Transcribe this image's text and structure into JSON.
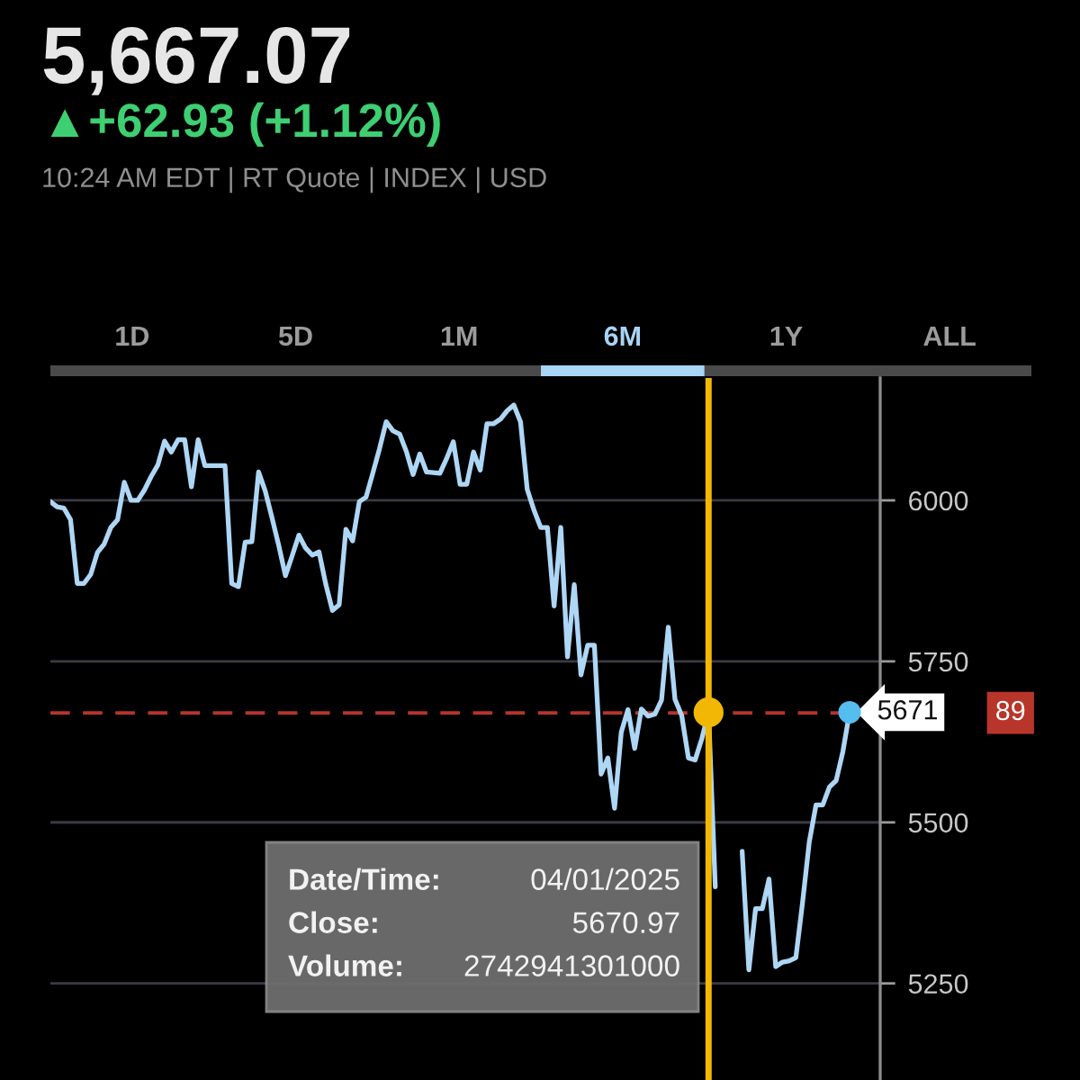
{
  "chart_data": {
    "type": "line",
    "title": "5,667.07",
    "subtitle": "▲+62.93 (+1.12%)",
    "annotations": [
      "10:24 AM EDT | RT Quote | INDEX | USD",
      "1D",
      "5D",
      "1M",
      "6M",
      "1Y",
      "ALL",
      "Date/Time:",
      "04/01/2025",
      "Close:",
      "5670.97",
      "Volume:",
      "2742941301000",
      "89"
    ],
    "categories": [
      null,
      null,
      null,
      null,
      null,
      null,
      null,
      null,
      null,
      null,
      null,
      null,
      null,
      null,
      null,
      null,
      null,
      null,
      null,
      null,
      null,
      null,
      null,
      null,
      null,
      null,
      null,
      null,
      null,
      null,
      null,
      null,
      null,
      null,
      null,
      null,
      null,
      null,
      null,
      null,
      null,
      null,
      null,
      null,
      null,
      null,
      null,
      null,
      null,
      null,
      null,
      null,
      null,
      null,
      null,
      null,
      null,
      null,
      null,
      null,
      null,
      null,
      null,
      null,
      null,
      null,
      null,
      null,
      null,
      null,
      null,
      null,
      null,
      null,
      null,
      null,
      null,
      null,
      null,
      null,
      null,
      null,
      null,
      null,
      null,
      null,
      null,
      null,
      null,
      null,
      null,
      null,
      null,
      null,
      null,
      null,
      null,
      null,
      null,
      null,
      null,
      null,
      null,
      null,
      null,
      null,
      null,
      null,
      null,
      null,
      null,
      null,
      null,
      null,
      null,
      null,
      null,
      null,
      null,
      null
    ],
    "series": [
      {
        "color": "#aed6f5",
        "values": [
          5998,
          5990,
          5988,
          5970,
          5871,
          5871,
          5885,
          5919,
          5932,
          5958,
          5970,
          6028,
          6000,
          6000,
          6016,
          6037,
          6055,
          6092,
          6075,
          6094,
          6094,
          6021,
          6094,
          6054,
          6054,
          6054,
          6054,
          5871,
          5866,
          5935,
          5936,
          6044,
          6014,
          5973,
          5930,
          5883,
          5914,
          5946,
          5926,
          5915,
          5920,
          5870,
          5829,
          5838,
          5955,
          5937,
          5998,
          6005,
          6042,
          6080,
          6122,
          6108,
          6103,
          6076,
          6040,
          6072,
          6044,
          6043,
          6042,
          6065,
          6091,
          6025,
          6025,
          6075,
          6047,
          6119,
          6119,
          6126,
          6139,
          6148,
          6122,
          6017,
          5985,
          5958,
          5958,
          5836,
          5958,
          5757,
          5869,
          5729,
          5775,
          5775,
          5575,
          5600,
          5522,
          5640,
          5675,
          5615,
          5676,
          5665,
          5668,
          5690,
          5803,
          5691,
          5666,
          5600,
          5597,
          5630,
          5670.97,
          5400,
          null,
          null,
          null,
          null,
          null,
          null,
          null,
          null,
          null,
          null,
          null,
          null,
          null,
          null,
          null,
          null,
          null,
          null,
          null,
          null
        ]
      },
      {
        "color": "#aed6f5",
        "values": [
          null,
          null,
          null,
          null,
          null,
          null,
          null,
          null,
          null,
          null,
          null,
          null,
          null,
          null,
          null,
          null,
          null,
          null,
          null,
          null,
          null,
          null,
          null,
          null,
          null,
          null,
          null,
          null,
          null,
          null,
          null,
          null,
          null,
          null,
          null,
          null,
          null,
          null,
          null,
          null,
          null,
          null,
          null,
          null,
          null,
          null,
          null,
          null,
          null,
          null,
          null,
          null,
          null,
          null,
          null,
          null,
          null,
          null,
          null,
          null,
          null,
          null,
          null,
          null,
          null,
          null,
          null,
          null,
          null,
          null,
          null,
          null,
          null,
          null,
          null,
          null,
          null,
          null,
          null,
          null,
          null,
          null,
          null,
          null,
          null,
          null,
          null,
          null,
          null,
          null,
          null,
          null,
          null,
          null,
          null,
          null,
          null,
          null,
          null,
          null,
          null,
          null,
          null,
          5455,
          5271,
          5366,
          5366,
          5412,
          5276,
          5283,
          5285,
          5290,
          5376,
          5470,
          5527,
          5527,
          5555,
          5565,
          5610,
          5671
        ],
        "value_labels": [
          null,
          null,
          null,
          null,
          null,
          null,
          null,
          null,
          null,
          null,
          null,
          null,
          null,
          null,
          null,
          null,
          null,
          null,
          null,
          null,
          null,
          null,
          null,
          null,
          null,
          null,
          null,
          null,
          null,
          null,
          null,
          null,
          null,
          null,
          null,
          null,
          null,
          null,
          null,
          null,
          null,
          null,
          null,
          null,
          null,
          null,
          null,
          null,
          null,
          null,
          null,
          null,
          null,
          null,
          null,
          null,
          null,
          null,
          null,
          null,
          null,
          null,
          null,
          null,
          null,
          null,
          null,
          null,
          null,
          null,
          null,
          null,
          null,
          null,
          null,
          null,
          null,
          null,
          null,
          null,
          null,
          null,
          null,
          null,
          null,
          null,
          null,
          null,
          null,
          null,
          null,
          null,
          null,
          null,
          null,
          null,
          null,
          null,
          null,
          null,
          null,
          null,
          null,
          null,
          null,
          null,
          null,
          null,
          null,
          null,
          null,
          null,
          null,
          null,
          null,
          null,
          null,
          null,
          null,
          "5671"
        ]
      }
    ],
    "ylim": [
      5100,
      6190
    ],
    "yticks": [
      5250,
      5500,
      5750,
      6000
    ],
    "grid": "y",
    "tick_labels": "y",
    "line_style": "solid",
    "ref_lines": [
      {
        "axis": "y",
        "value": 5670,
        "color": "#b8352a",
        "line_style": "dashed"
      }
    ]
  }
}
